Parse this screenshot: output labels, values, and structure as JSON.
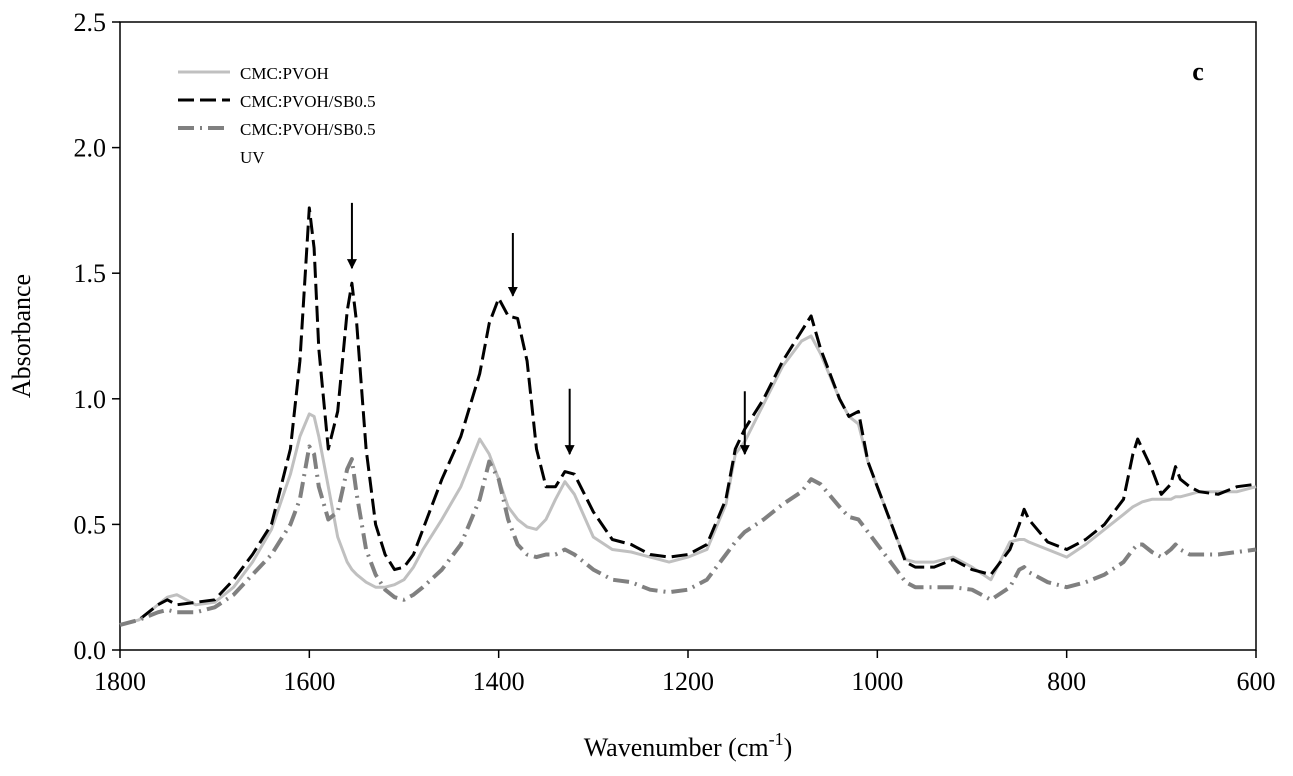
{
  "chart_data": {
    "type": "line",
    "xlabel": [
      "Wavenumber (cm",
      "-1",
      ")"
    ],
    "ylabel": "Absorbance",
    "annotation": "c",
    "xlim": [
      1800,
      600
    ],
    "ylim": [
      0,
      2.5
    ],
    "xticks": [
      1800,
      1600,
      1400,
      1200,
      1000,
      800,
      600
    ],
    "yticks": [
      {
        "value": 0,
        "label": "0.0"
      },
      0.5,
      {
        "value": 1,
        "label": "1.0"
      },
      1.5,
      {
        "value": 2,
        "label": "2.0"
      },
      2.5
    ],
    "grid": false,
    "legend": "upper left",
    "x": [
      1800,
      1780,
      1760,
      1750,
      1740,
      1720,
      1700,
      1680,
      1660,
      1640,
      1620,
      1610,
      1600,
      1595,
      1590,
      1580,
      1570,
      1560,
      1555,
      1550,
      1540,
      1530,
      1520,
      1510,
      1500,
      1490,
      1480,
      1460,
      1440,
      1420,
      1410,
      1400,
      1390,
      1380,
      1370,
      1360,
      1350,
      1340,
      1330,
      1320,
      1300,
      1280,
      1260,
      1240,
      1220,
      1200,
      1180,
      1160,
      1150,
      1140,
      1120,
      1100,
      1080,
      1070,
      1060,
      1040,
      1030,
      1020,
      1010,
      1000,
      980,
      970,
      960,
      940,
      920,
      900,
      880,
      860,
      850,
      845,
      840,
      820,
      800,
      780,
      760,
      740,
      730,
      725,
      720,
      710,
      700,
      690,
      685,
      680,
      670,
      660,
      640,
      620,
      600
    ],
    "series": [
      {
        "name": "CMC:PVOH",
        "color": "#c0c0c0",
        "dash": "solid",
        "width": 3,
        "values": [
          0.1,
          0.12,
          0.18,
          0.21,
          0.22,
          0.18,
          0.19,
          0.25,
          0.35,
          0.48,
          0.7,
          0.85,
          0.94,
          0.93,
          0.85,
          0.65,
          0.45,
          0.35,
          0.32,
          0.3,
          0.27,
          0.25,
          0.25,
          0.26,
          0.28,
          0.33,
          0.4,
          0.52,
          0.65,
          0.84,
          0.78,
          0.68,
          0.57,
          0.52,
          0.49,
          0.48,
          0.52,
          0.6,
          0.67,
          0.62,
          0.45,
          0.4,
          0.39,
          0.37,
          0.35,
          0.37,
          0.4,
          0.58,
          0.78,
          0.83,
          0.98,
          1.13,
          1.23,
          1.25,
          1.18,
          1.0,
          0.93,
          0.9,
          0.75,
          0.65,
          0.45,
          0.36,
          0.35,
          0.35,
          0.37,
          0.33,
          0.28,
          0.43,
          0.44,
          0.44,
          0.43,
          0.4,
          0.37,
          0.42,
          0.48,
          0.54,
          0.57,
          0.58,
          0.59,
          0.6,
          0.6,
          0.6,
          0.61,
          0.61,
          0.62,
          0.63,
          0.63,
          0.63,
          0.65
        ]
      },
      {
        "name": "CMC:PVOH/SB0.5",
        "color": "#000000",
        "dash": "dashed",
        "width": 3,
        "values": [
          0.1,
          0.12,
          0.18,
          0.2,
          0.18,
          0.19,
          0.2,
          0.28,
          0.38,
          0.5,
          0.8,
          1.15,
          1.76,
          1.6,
          1.2,
          0.8,
          0.95,
          1.35,
          1.46,
          1.3,
          0.8,
          0.5,
          0.38,
          0.32,
          0.33,
          0.38,
          0.48,
          0.68,
          0.85,
          1.1,
          1.3,
          1.4,
          1.33,
          1.32,
          1.15,
          0.8,
          0.65,
          0.65,
          0.71,
          0.7,
          0.55,
          0.44,
          0.42,
          0.38,
          0.37,
          0.38,
          0.42,
          0.6,
          0.8,
          0.88,
          1.0,
          1.15,
          1.27,
          1.33,
          1.2,
          1.0,
          0.93,
          0.95,
          0.75,
          0.65,
          0.45,
          0.35,
          0.33,
          0.33,
          0.36,
          0.32,
          0.3,
          0.4,
          0.5,
          0.56,
          0.52,
          0.43,
          0.4,
          0.44,
          0.5,
          0.6,
          0.78,
          0.84,
          0.8,
          0.72,
          0.62,
          0.66,
          0.73,
          0.68,
          0.65,
          0.63,
          0.62,
          0.65,
          0.66
        ]
      },
      {
        "name": "CMC:PVOH/SB0.5 UV",
        "color": "#808080",
        "dash": "dashdot",
        "width": 4,
        "values": [
          0.1,
          0.12,
          0.15,
          0.16,
          0.15,
          0.15,
          0.17,
          0.22,
          0.3,
          0.38,
          0.5,
          0.6,
          0.81,
          0.78,
          0.65,
          0.52,
          0.55,
          0.72,
          0.76,
          0.62,
          0.4,
          0.3,
          0.24,
          0.21,
          0.2,
          0.22,
          0.25,
          0.32,
          0.42,
          0.6,
          0.75,
          0.68,
          0.52,
          0.42,
          0.38,
          0.37,
          0.38,
          0.38,
          0.4,
          0.38,
          0.32,
          0.28,
          0.27,
          0.24,
          0.23,
          0.24,
          0.28,
          0.38,
          0.43,
          0.47,
          0.52,
          0.58,
          0.63,
          0.68,
          0.66,
          0.57,
          0.53,
          0.52,
          0.47,
          0.42,
          0.32,
          0.27,
          0.25,
          0.25,
          0.25,
          0.24,
          0.2,
          0.25,
          0.32,
          0.33,
          0.31,
          0.27,
          0.25,
          0.27,
          0.3,
          0.35,
          0.4,
          0.42,
          0.42,
          0.39,
          0.37,
          0.4,
          0.42,
          0.4,
          0.38,
          0.38,
          0.38,
          0.39,
          0.4
        ]
      }
    ],
    "arrows": [
      {
        "x": 1555,
        "from": 1.78,
        "to": 1.52
      },
      {
        "x": 1385,
        "from": 1.66,
        "to": 1.41
      },
      {
        "x": 1325,
        "from": 1.04,
        "to": 0.78
      },
      {
        "x": 1140,
        "from": 1.03,
        "to": 0.78
      }
    ]
  }
}
